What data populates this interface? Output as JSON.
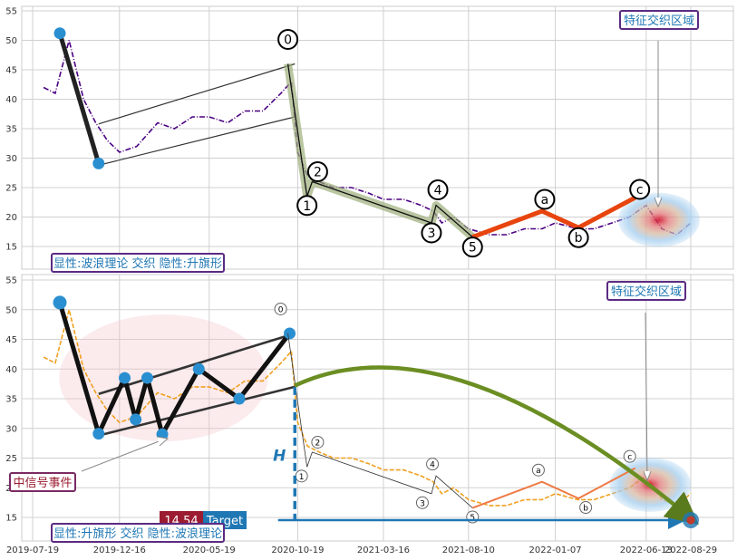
{
  "chart_data": [
    {
      "type": "line",
      "ylim": [
        12,
        56
      ],
      "yticks": [
        15,
        20,
        25,
        30,
        35,
        40,
        45,
        50,
        55
      ],
      "grid": true,
      "price_color": "#4b0082",
      "tags": [
        "显性:波浪理论 交织 隐性:升旗形"
      ],
      "zone_label": "特征交织区域",
      "series": [
        {
          "x": [
            "2019-08-07",
            "2019-08-27",
            "2019-09-20",
            "2019-10-15",
            "2019-11-05",
            "2019-11-25",
            "2019-12-16",
            "2020-01-15",
            "2020-02-20",
            "2020-03-20",
            "2020-04-20",
            "2020-05-19",
            "2020-06-20",
            "2020-07-20",
            "2020-08-20",
            "2020-09-20",
            "2020-10-08",
            "2020-10-19",
            "2020-11-05",
            "2020-11-25",
            "2020-12-20",
            "2021-01-20",
            "2021-02-20",
            "2021-03-16",
            "2021-04-20",
            "2021-05-20",
            "2021-06-10",
            "2021-06-25",
            "2021-07-15",
            "2021-08-10",
            "2021-09-15",
            "2021-10-15",
            "2021-11-15",
            "2021-12-15",
            "2022-01-07",
            "2022-02-15",
            "2022-03-15",
            "2022-04-15",
            "2022-05-15",
            "2022-06-13",
            "2022-07-10",
            "2022-08-05",
            "2022-08-29"
          ],
          "values": [
            42,
            41,
            50,
            40,
            36,
            33,
            31,
            32,
            36,
            35,
            37,
            37,
            36,
            38,
            38,
            41,
            43,
            31,
            27,
            26,
            25,
            25,
            24,
            23,
            23,
            22,
            21,
            19,
            20,
            18,
            17,
            17,
            18,
            18,
            19,
            18,
            18,
            19,
            20,
            22,
            18,
            17,
            19
          ]
        }
      ],
      "wave_points": [
        {
          "label": "",
          "date": "2019-09-04",
          "value": 51.2
        },
        {
          "label": "",
          "date": "2019-11-10",
          "value": 29.1
        },
        {
          "label": "0",
          "date": "2020-10-02",
          "value": 46.0
        },
        {
          "label": "1",
          "date": "2020-11-04",
          "value": 23.5
        },
        {
          "label": "2",
          "date": "2020-11-13",
          "value": 26.0
        },
        {
          "label": "3",
          "date": "2021-06-07",
          "value": 19.0
        },
        {
          "label": "4",
          "date": "2021-06-15",
          "value": 22.0
        },
        {
          "label": "5",
          "date": "2021-08-17",
          "value": 16.6
        },
        {
          "label": "a",
          "date": "2021-12-15",
          "value": 21.0
        },
        {
          "label": "b",
          "date": "2022-02-16",
          "value": 18.2
        },
        {
          "label": "c",
          "date": "2022-05-25",
          "value": 23.3
        }
      ],
      "flag_channel": {
        "upper": [
          {
            "date": "2019-11-10",
            "value": 35.8
          },
          {
            "date": "2020-10-14",
            "value": 46.0
          }
        ],
        "lower": [
          {
            "date": "2019-11-10",
            "value": 28.8
          },
          {
            "date": "2020-10-14",
            "value": 37.0
          }
        ]
      },
      "wave_labels_shown": [
        "0",
        "1",
        "2",
        "3",
        "4",
        "5",
        "a",
        "b",
        "c"
      ]
    },
    {
      "type": "line",
      "ylim": [
        12,
        56
      ],
      "yticks": [
        15,
        20,
        25,
        30,
        35,
        40,
        45,
        50,
        55
      ],
      "xticks": [
        "2019-07-19",
        "2019-12-16",
        "2020-05-19",
        "2020-10-19",
        "2021-03-16",
        "2021-08-10",
        "2022-01-07",
        "2022-06-13",
        "2022-08-29"
      ],
      "grid": true,
      "price_color": "#f0a020",
      "tags": [
        "显性:升旗形 交织 隐性:波浪理论"
      ],
      "zone_label": "特征交织区域",
      "signal_label": "中信号事件",
      "target": {
        "value": "14.54",
        "label": "Target",
        "date": "2022-08-29"
      },
      "height_label": "H",
      "series": [
        {
          "x": [
            "2019-08-07",
            "2019-08-27",
            "2019-09-20",
            "2019-10-15",
            "2019-11-05",
            "2019-11-25",
            "2019-12-16",
            "2020-01-15",
            "2020-02-20",
            "2020-03-20",
            "2020-04-20",
            "2020-05-19",
            "2020-06-20",
            "2020-07-20",
            "2020-08-20",
            "2020-09-20",
            "2020-10-08",
            "2020-10-19",
            "2020-11-05",
            "2020-11-25",
            "2020-12-20",
            "2021-01-20",
            "2021-02-20",
            "2021-03-16",
            "2021-04-20",
            "2021-05-20",
            "2021-06-10",
            "2021-06-25",
            "2021-07-15",
            "2021-08-10",
            "2021-09-15",
            "2021-10-15",
            "2021-11-15",
            "2021-12-15",
            "2022-01-07",
            "2022-02-15",
            "2022-03-15",
            "2022-04-15",
            "2022-05-15",
            "2022-06-13",
            "2022-07-10",
            "2022-08-05",
            "2022-08-29"
          ],
          "values": [
            42,
            41,
            50,
            40,
            36,
            33,
            31,
            32,
            36,
            35,
            37,
            37,
            36,
            38,
            38,
            41,
            43,
            31,
            27,
            26,
            25,
            25,
            24,
            23,
            23,
            22,
            21,
            19,
            20,
            18,
            17,
            17,
            18,
            18,
            19,
            18,
            18,
            19,
            20,
            22,
            18,
            17,
            19
          ]
        }
      ],
      "flag_points": [
        {
          "date": "2019-09-04",
          "value": 51.2
        },
        {
          "date": "2019-11-10",
          "value": 29.1
        },
        {
          "date": "2019-12-25",
          "value": 38.5
        },
        {
          "date": "2020-01-13",
          "value": 31.5
        },
        {
          "date": "2020-02-02",
          "value": 38.5
        },
        {
          "date": "2020-02-28",
          "value": 29.0
        },
        {
          "date": "2020-05-01",
          "value": 40.0
        },
        {
          "date": "2020-07-10",
          "value": 35.0
        },
        {
          "date": "2020-10-05",
          "value": 46.0
        }
      ],
      "flag_channel": {
        "upper": [
          {
            "date": "2019-11-10",
            "value": 35.8
          },
          {
            "date": "2020-10-14",
            "value": 46.0
          }
        ],
        "lower": [
          {
            "date": "2019-11-10",
            "value": 28.8
          },
          {
            "date": "2020-10-14",
            "value": 37.0
          }
        ]
      },
      "wave_labels_shown": [
        "0",
        "1",
        "2",
        "3",
        "4",
        "5",
        "a",
        "b",
        "c"
      ]
    }
  ]
}
